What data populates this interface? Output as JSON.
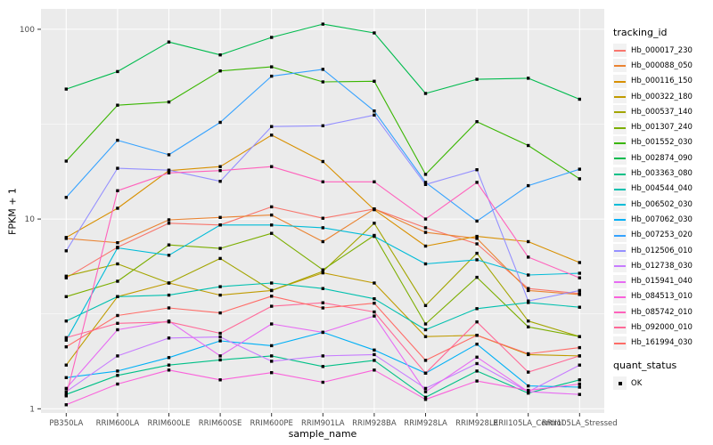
{
  "figure": {
    "y_axis": {
      "label": "FPKM + 1",
      "tick_labels": [
        "1",
        "10",
        "100"
      ],
      "tick_values": [
        1,
        10,
        100
      ]
    },
    "x_axis": {
      "label": "sample_name"
    },
    "legend": {
      "color_title": "tracking_id",
      "shape_title": "quant_status",
      "shape_items": [
        {
          "label": "OK",
          "shape": "filled-square",
          "color": "#000000"
        }
      ]
    },
    "colors": {
      "panel_bg": "#EBEBEB",
      "grid": "#FFFFFF",
      "tick_mark": "#333333",
      "tick_text": "#4D4D4D",
      "text": "#000000",
      "point": "#000000",
      "legend_key_bg": "#F2F2F2"
    }
  },
  "chart_data": {
    "type": "line",
    "title": "",
    "xlabel": "sample_name",
    "ylabel": "FPKM + 1",
    "y_scale": "log10",
    "ylim": [
      1,
      130
    ],
    "grid": "on",
    "legend_position": "right",
    "point_marker": "black-square",
    "x": [
      "PB350LA",
      "RRIM600LA",
      "RRIM600LE",
      "RRIM600SE",
      "RRIM600PE",
      "RRIM901LA",
      "RRIM928BA",
      "RRIM928LA",
      "RRIM928LE",
      "RRII105LA_Control",
      "RRII105LA_Stressed"
    ],
    "series": [
      {
        "name": "Hb_000017_230",
        "color": "#F8766D",
        "values": [
          4.9,
          7.1,
          9.5,
          9.3,
          11.6,
          10.1,
          11.3,
          9.0,
          7.4,
          4.3,
          4.05
        ]
      },
      {
        "name": "Hb_000088_050",
        "color": "#EA8331",
        "values": [
          7.9,
          7.5,
          9.9,
          10.2,
          10.5,
          7.6,
          11.3,
          8.5,
          7.9,
          4.2,
          4.0
        ]
      },
      {
        "name": "Hb_000116_150",
        "color": "#D89000",
        "values": [
          8.0,
          11.4,
          18.0,
          18.9,
          27.7,
          20.1,
          11.2,
          7.2,
          8.1,
          7.6,
          5.9
        ]
      },
      {
        "name": "Hb_000322_180",
        "color": "#C09B00",
        "values": [
          1.7,
          3.9,
          4.6,
          3.97,
          4.2,
          5.2,
          4.6,
          2.4,
          2.44,
          1.93,
          1.9
        ]
      },
      {
        "name": "Hb_000537_140",
        "color": "#A3A500",
        "values": [
          5.0,
          5.8,
          4.6,
          6.2,
          4.2,
          5.3,
          9.5,
          3.5,
          6.6,
          2.9,
          2.4
        ]
      },
      {
        "name": "Hb_001307_240",
        "color": "#7CAE00",
        "values": [
          3.9,
          4.7,
          7.3,
          7.0,
          8.4,
          5.4,
          8.2,
          2.8,
          4.93,
          2.7,
          2.4
        ]
      },
      {
        "name": "Hb_001552_030",
        "color": "#39B600",
        "values": [
          20.2,
          39.8,
          41.4,
          60.3,
          63.4,
          52.8,
          53.2,
          17.2,
          32.6,
          24.4,
          16.3
        ]
      },
      {
        "name": "Hb_002874_090",
        "color": "#00BB4E",
        "values": [
          48.4,
          59.9,
          85.7,
          73.3,
          90.6,
          106.5,
          95.7,
          45.9,
          54.5,
          55.2,
          42.8
        ]
      },
      {
        "name": "Hb_003363_080",
        "color": "#00C087",
        "values": [
          1.19,
          1.5,
          1.7,
          1.81,
          1.9,
          1.67,
          1.8,
          1.15,
          1.58,
          1.21,
          1.42
        ]
      },
      {
        "name": "Hb_004544_040",
        "color": "#00C0AF",
        "values": [
          2.9,
          3.9,
          3.97,
          4.4,
          4.6,
          4.3,
          3.8,
          2.61,
          3.37,
          3.63,
          3.43
        ]
      },
      {
        "name": "Hb_006502_030",
        "color": "#00BCD8",
        "values": [
          2.3,
          7.05,
          6.44,
          9.3,
          9.3,
          9.0,
          8.1,
          5.8,
          6.1,
          5.07,
          5.18
        ]
      },
      {
        "name": "Hb_007062_030",
        "color": "#00B0F6",
        "values": [
          1.46,
          1.58,
          1.86,
          2.28,
          2.15,
          2.53,
          2.04,
          1.54,
          2.19,
          1.32,
          1.3
        ]
      },
      {
        "name": "Hb_007253_020",
        "color": "#35A2FF",
        "values": [
          13.0,
          26.0,
          21.8,
          32.3,
          56.6,
          61.5,
          37.1,
          15.6,
          9.75,
          15.0,
          18.3
        ]
      },
      {
        "name": "Hb_012506_010",
        "color": "#9590FF",
        "values": [
          6.8,
          18.5,
          18.1,
          15.8,
          30.7,
          31.0,
          35.3,
          15.2,
          18.2,
          3.7,
          4.2
        ]
      },
      {
        "name": "Hb_012738_030",
        "color": "#C77CFF",
        "values": [
          1.23,
          1.9,
          2.36,
          2.39,
          1.78,
          1.9,
          1.93,
          1.28,
          1.73,
          1.23,
          1.7
        ]
      },
      {
        "name": "Hb_015941_040",
        "color": "#E76BF3",
        "values": [
          1.28,
          2.61,
          2.9,
          1.9,
          2.8,
          2.53,
          3.08,
          1.23,
          1.87,
          1.23,
          1.19
        ]
      },
      {
        "name": "Hb_084513_010",
        "color": "#FA62DB",
        "values": [
          1.05,
          1.35,
          1.6,
          1.42,
          1.55,
          1.38,
          1.6,
          1.12,
          1.4,
          1.25,
          1.35
        ]
      },
      {
        "name": "Hb_085742_010",
        "color": "#FF62BC",
        "values": [
          1.17,
          14.1,
          17.5,
          18.0,
          18.9,
          15.7,
          15.7,
          10.0,
          15.6,
          6.3,
          4.9
        ]
      },
      {
        "name": "Hb_092000_010",
        "color": "#FF6A98",
        "values": [
          2.37,
          2.82,
          2.87,
          2.5,
          3.47,
          3.62,
          3.24,
          1.54,
          2.87,
          1.56,
          1.9
        ]
      },
      {
        "name": "Hb_161994_030",
        "color": "#FF6C67",
        "values": [
          2.12,
          3.1,
          3.4,
          3.2,
          3.92,
          3.4,
          3.6,
          1.8,
          2.44,
          1.95,
          2.1
        ]
      }
    ]
  }
}
